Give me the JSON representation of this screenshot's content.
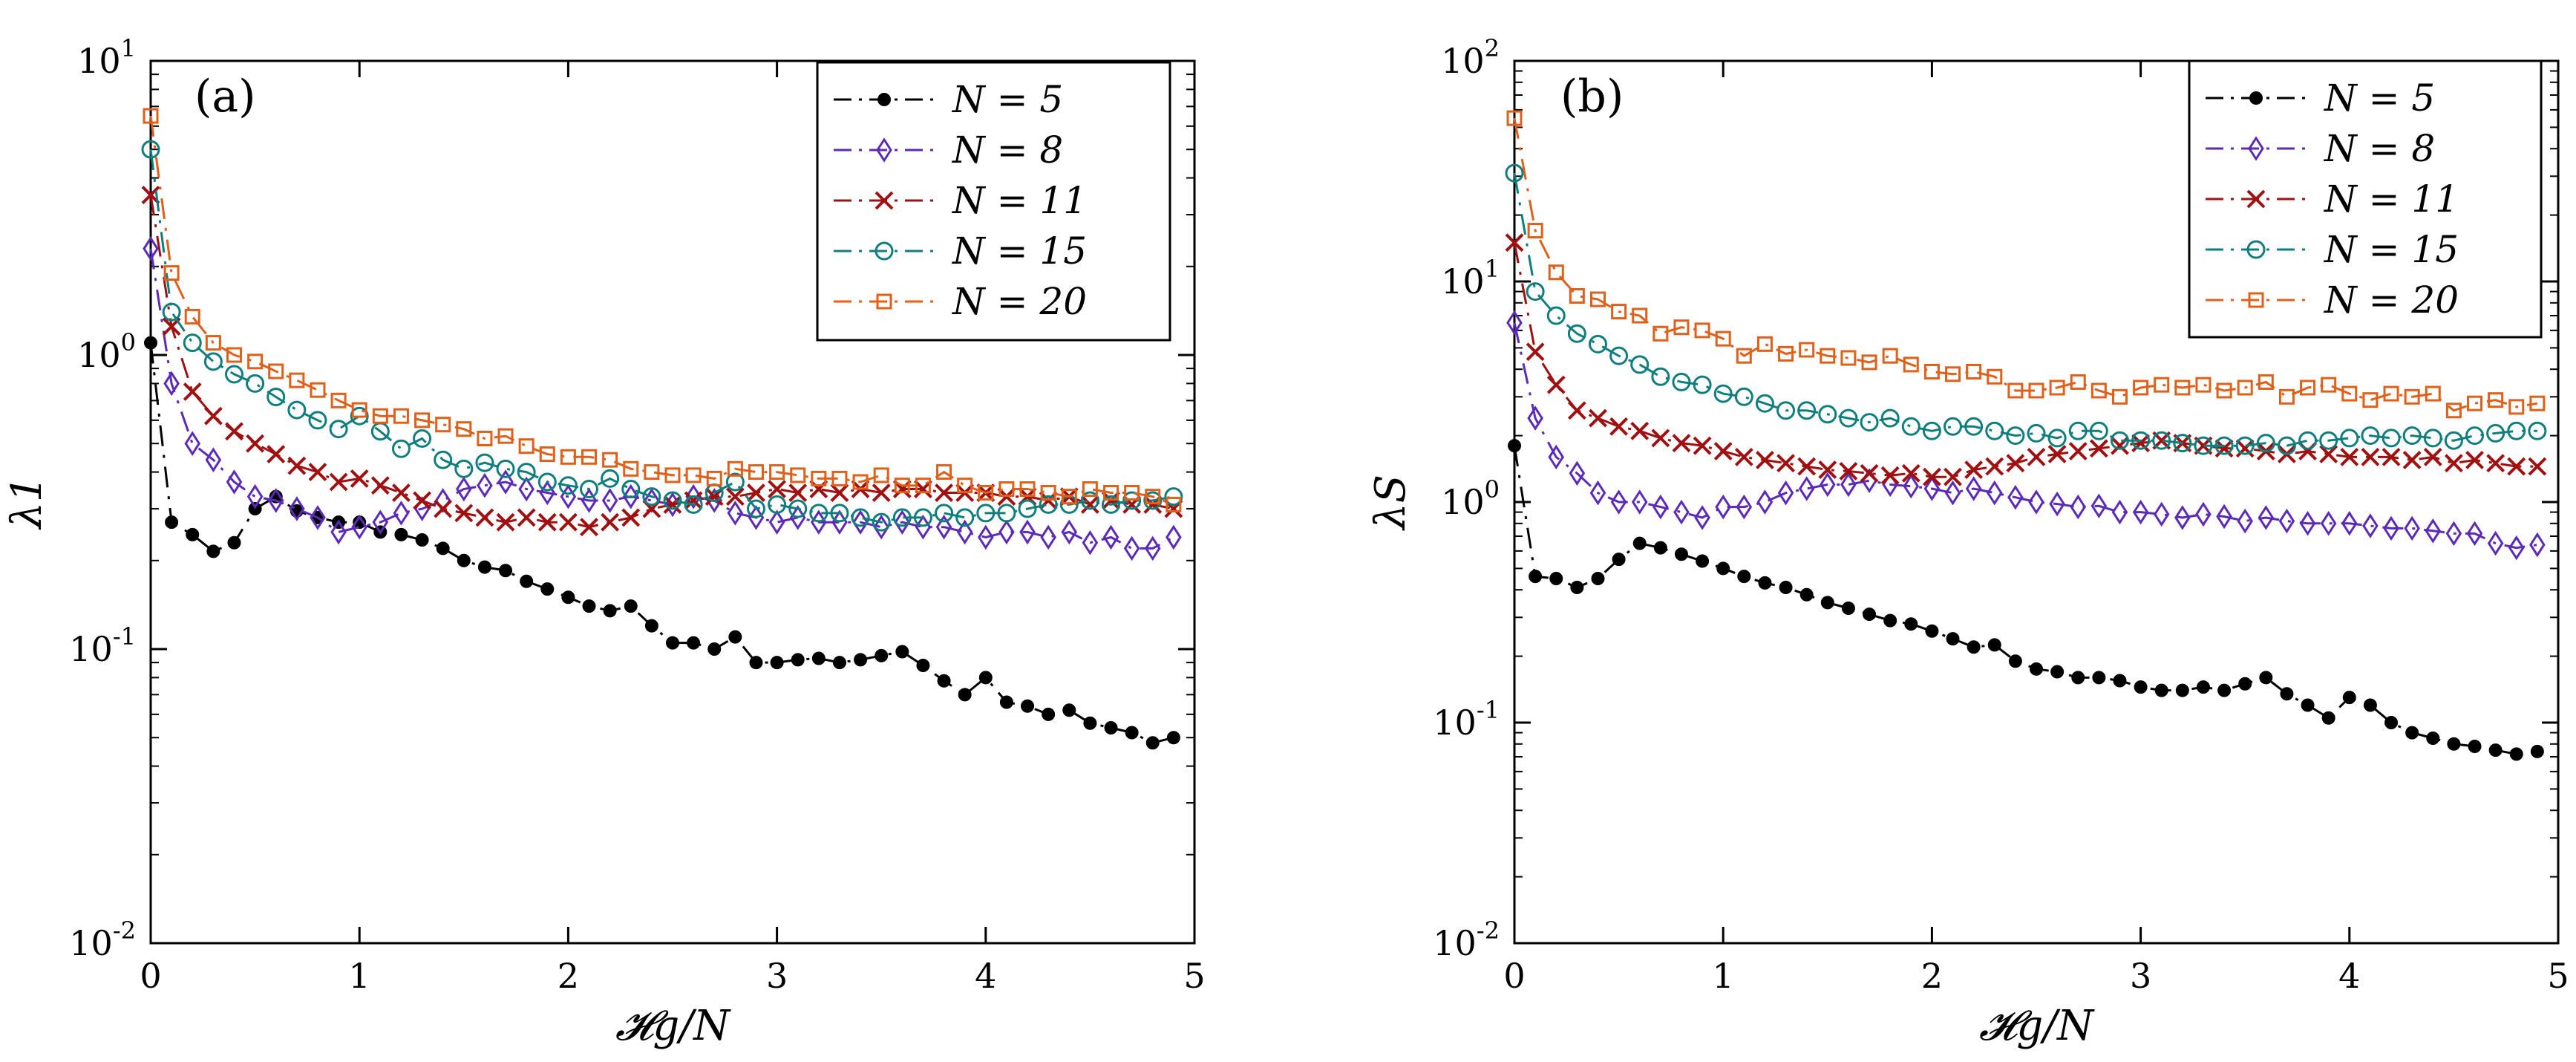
{
  "figure": {
    "background": "#ffffff"
  },
  "chart_data": [
    {
      "type": "line",
      "scale": "log",
      "panel_label": "(a)",
      "xlabel": "𝓗g/N",
      "ylabel": "λ1",
      "xlim": [
        0,
        5
      ],
      "ylim": [
        0.01,
        10
      ],
      "xticks": [
        0,
        1,
        2,
        3,
        4,
        5
      ],
      "x_tick_labels": [
        "0",
        "1",
        "2",
        "3",
        "4",
        "5"
      ],
      "y_tick_labels": [
        {
          "base": "10",
          "exp": "-2"
        },
        {
          "base": "10",
          "exp": "-1"
        },
        {
          "base": "10",
          "exp": "0"
        },
        {
          "base": "10",
          "exp": "1"
        }
      ],
      "yticks": [
        0.01,
        0.1,
        1,
        10
      ],
      "legend_position": "top-right",
      "x": [
        0,
        0.1,
        0.2,
        0.3,
        0.4,
        0.5,
        0.6,
        0.7,
        0.8,
        0.9,
        1.0,
        1.1,
        1.2,
        1.3,
        1.4,
        1.5,
        1.6,
        1.7,
        1.8,
        1.9,
        2.0,
        2.1,
        2.2,
        2.3,
        2.4,
        2.5,
        2.6,
        2.7,
        2.8,
        2.9,
        3.0,
        3.1,
        3.2,
        3.3,
        3.4,
        3.5,
        3.6,
        3.7,
        3.8,
        3.9,
        4.0,
        4.1,
        4.2,
        4.3,
        4.4,
        4.5,
        4.6,
        4.7,
        4.8,
        4.9
      ],
      "series": [
        {
          "name": "N = 5",
          "color": "#000000",
          "marker": "dot",
          "values": [
            1.1,
            0.27,
            0.245,
            0.215,
            0.23,
            0.3,
            0.33,
            0.295,
            0.28,
            0.27,
            0.27,
            0.25,
            0.245,
            0.235,
            0.22,
            0.2,
            0.19,
            0.185,
            0.17,
            0.16,
            0.15,
            0.14,
            0.135,
            0.14,
            0.12,
            0.105,
            0.105,
            0.1,
            0.11,
            0.09,
            0.09,
            0.092,
            0.093,
            0.09,
            0.092,
            0.095,
            0.098,
            0.088,
            0.078,
            0.07,
            0.08,
            0.066,
            0.064,
            0.06,
            0.062,
            0.056,
            0.054,
            0.052,
            0.048,
            0.05
          ]
        },
        {
          "name": "N = 8",
          "color": "#5b2ab8",
          "marker": "diamond",
          "values": [
            2.3,
            0.8,
            0.5,
            0.44,
            0.37,
            0.33,
            0.32,
            0.3,
            0.28,
            0.25,
            0.26,
            0.27,
            0.29,
            0.3,
            0.32,
            0.35,
            0.36,
            0.37,
            0.35,
            0.34,
            0.33,
            0.32,
            0.32,
            0.33,
            0.32,
            0.31,
            0.33,
            0.32,
            0.29,
            0.28,
            0.27,
            0.28,
            0.27,
            0.27,
            0.27,
            0.26,
            0.27,
            0.26,
            0.26,
            0.25,
            0.24,
            0.25,
            0.25,
            0.24,
            0.25,
            0.23,
            0.24,
            0.22,
            0.22,
            0.24
          ]
        },
        {
          "name": "N = 11",
          "color": "#a01010",
          "marker": "cross",
          "values": [
            3.5,
            1.25,
            0.75,
            0.62,
            0.55,
            0.5,
            0.46,
            0.42,
            0.4,
            0.37,
            0.38,
            0.36,
            0.34,
            0.32,
            0.3,
            0.29,
            0.28,
            0.27,
            0.28,
            0.27,
            0.27,
            0.26,
            0.27,
            0.28,
            0.3,
            0.31,
            0.32,
            0.33,
            0.33,
            0.34,
            0.35,
            0.34,
            0.35,
            0.34,
            0.35,
            0.34,
            0.35,
            0.35,
            0.34,
            0.34,
            0.34,
            0.33,
            0.33,
            0.32,
            0.33,
            0.31,
            0.32,
            0.31,
            0.31,
            0.3
          ]
        },
        {
          "name": "N = 15",
          "color": "#107e7e",
          "marker": "circle",
          "values": [
            5.0,
            1.4,
            1.1,
            0.95,
            0.86,
            0.8,
            0.72,
            0.65,
            0.6,
            0.56,
            0.62,
            0.55,
            0.48,
            0.52,
            0.44,
            0.41,
            0.43,
            0.41,
            0.4,
            0.37,
            0.36,
            0.35,
            0.38,
            0.35,
            0.33,
            0.32,
            0.31,
            0.34,
            0.37,
            0.3,
            0.31,
            0.3,
            0.29,
            0.29,
            0.28,
            0.27,
            0.28,
            0.28,
            0.29,
            0.28,
            0.29,
            0.29,
            0.3,
            0.31,
            0.31,
            0.32,
            0.31,
            0.32,
            0.32,
            0.33
          ]
        },
        {
          "name": "N = 20",
          "color": "#e0601a",
          "marker": "square",
          "values": [
            6.5,
            1.9,
            1.35,
            1.1,
            1.0,
            0.95,
            0.88,
            0.82,
            0.76,
            0.7,
            0.65,
            0.62,
            0.62,
            0.6,
            0.58,
            0.56,
            0.52,
            0.53,
            0.49,
            0.46,
            0.45,
            0.45,
            0.44,
            0.41,
            0.4,
            0.39,
            0.39,
            0.38,
            0.41,
            0.4,
            0.4,
            0.39,
            0.38,
            0.38,
            0.37,
            0.39,
            0.36,
            0.36,
            0.4,
            0.36,
            0.34,
            0.35,
            0.35,
            0.34,
            0.33,
            0.35,
            0.34,
            0.34,
            0.33,
            0.31
          ]
        }
      ]
    },
    {
      "type": "line",
      "scale": "log",
      "panel_label": "(b)",
      "xlabel": "𝓗g/N",
      "ylabel": "λS",
      "xlim": [
        0,
        5
      ],
      "ylim": [
        0.01,
        100
      ],
      "xticks": [
        0,
        1,
        2,
        3,
        4,
        5
      ],
      "x_tick_labels": [
        "0",
        "1",
        "2",
        "3",
        "4",
        "5"
      ],
      "y_tick_labels": [
        {
          "base": "10",
          "exp": "-2"
        },
        {
          "base": "10",
          "exp": "-1"
        },
        {
          "base": "10",
          "exp": "0"
        },
        {
          "base": "10",
          "exp": "1"
        },
        {
          "base": "10",
          "exp": "2"
        }
      ],
      "yticks": [
        0.01,
        0.1,
        1,
        10,
        100
      ],
      "legend_position": "top-right",
      "x": [
        0,
        0.1,
        0.2,
        0.3,
        0.4,
        0.5,
        0.6,
        0.7,
        0.8,
        0.9,
        1.0,
        1.1,
        1.2,
        1.3,
        1.4,
        1.5,
        1.6,
        1.7,
        1.8,
        1.9,
        2.0,
        2.1,
        2.2,
        2.3,
        2.4,
        2.5,
        2.6,
        2.7,
        2.8,
        2.9,
        3.0,
        3.1,
        3.2,
        3.3,
        3.4,
        3.5,
        3.6,
        3.7,
        3.8,
        3.9,
        4.0,
        4.1,
        4.2,
        4.3,
        4.4,
        4.5,
        4.6,
        4.7,
        4.8,
        4.9
      ],
      "series": [
        {
          "name": "N = 5",
          "color": "#000000",
          "marker": "dot",
          "values": [
            1.8,
            0.46,
            0.45,
            0.41,
            0.45,
            0.55,
            0.65,
            0.62,
            0.58,
            0.54,
            0.5,
            0.46,
            0.43,
            0.41,
            0.38,
            0.35,
            0.33,
            0.31,
            0.29,
            0.28,
            0.26,
            0.24,
            0.22,
            0.225,
            0.19,
            0.175,
            0.17,
            0.16,
            0.16,
            0.155,
            0.145,
            0.14,
            0.14,
            0.145,
            0.14,
            0.15,
            0.16,
            0.135,
            0.12,
            0.105,
            0.13,
            0.12,
            0.1,
            0.09,
            0.085,
            0.08,
            0.078,
            0.075,
            0.072,
            0.074
          ]
        },
        {
          "name": "N = 8",
          "color": "#5b2ab8",
          "marker": "diamond",
          "values": [
            6.5,
            2.4,
            1.6,
            1.35,
            1.1,
            1.0,
            1.0,
            0.95,
            0.9,
            0.85,
            0.95,
            0.95,
            1.0,
            1.1,
            1.15,
            1.2,
            1.2,
            1.25,
            1.2,
            1.18,
            1.15,
            1.1,
            1.15,
            1.1,
            1.05,
            1.0,
            0.98,
            0.95,
            0.96,
            0.9,
            0.9,
            0.88,
            0.85,
            0.88,
            0.86,
            0.82,
            0.85,
            0.82,
            0.8,
            0.8,
            0.8,
            0.78,
            0.76,
            0.76,
            0.74,
            0.72,
            0.72,
            0.65,
            0.62,
            0.64
          ]
        },
        {
          "name": "N = 11",
          "color": "#a01010",
          "marker": "cross",
          "values": [
            15.0,
            4.8,
            3.4,
            2.6,
            2.4,
            2.2,
            2.1,
            1.95,
            1.85,
            1.8,
            1.7,
            1.6,
            1.55,
            1.5,
            1.45,
            1.4,
            1.38,
            1.35,
            1.32,
            1.35,
            1.3,
            1.3,
            1.4,
            1.45,
            1.5,
            1.6,
            1.65,
            1.7,
            1.75,
            1.8,
            1.85,
            1.9,
            1.85,
            1.8,
            1.75,
            1.75,
            1.7,
            1.65,
            1.7,
            1.65,
            1.6,
            1.6,
            1.6,
            1.55,
            1.6,
            1.5,
            1.55,
            1.5,
            1.45,
            1.45
          ]
        },
        {
          "name": "N = 15",
          "color": "#107e7e",
          "marker": "circle",
          "values": [
            31.0,
            9.0,
            7.0,
            5.8,
            5.2,
            4.6,
            4.2,
            3.7,
            3.5,
            3.4,
            3.1,
            3.0,
            2.8,
            2.6,
            2.6,
            2.5,
            2.4,
            2.3,
            2.4,
            2.2,
            2.1,
            2.2,
            2.2,
            2.1,
            2.0,
            2.05,
            1.95,
            2.1,
            2.1,
            1.9,
            1.9,
            1.9,
            1.85,
            1.8,
            1.8,
            1.8,
            1.85,
            1.8,
            1.9,
            1.9,
            1.95,
            2.0,
            1.95,
            2.0,
            1.95,
            1.9,
            2.0,
            2.05,
            2.1,
            2.1
          ]
        },
        {
          "name": "N = 20",
          "color": "#e0601a",
          "marker": "square",
          "values": [
            55.0,
            17.0,
            11.0,
            8.6,
            8.3,
            7.3,
            7.0,
            5.8,
            6.2,
            6.0,
            5.5,
            4.6,
            5.2,
            4.7,
            4.9,
            4.6,
            4.5,
            4.3,
            4.6,
            4.2,
            3.9,
            3.8,
            3.9,
            3.7,
            3.2,
            3.2,
            3.3,
            3.5,
            3.2,
            3.0,
            3.3,
            3.4,
            3.3,
            3.4,
            3.2,
            3.3,
            3.5,
            3.0,
            3.3,
            3.4,
            3.1,
            2.9,
            3.1,
            3.0,
            3.1,
            2.6,
            2.8,
            2.9,
            2.7,
            2.8
          ]
        }
      ]
    }
  ]
}
